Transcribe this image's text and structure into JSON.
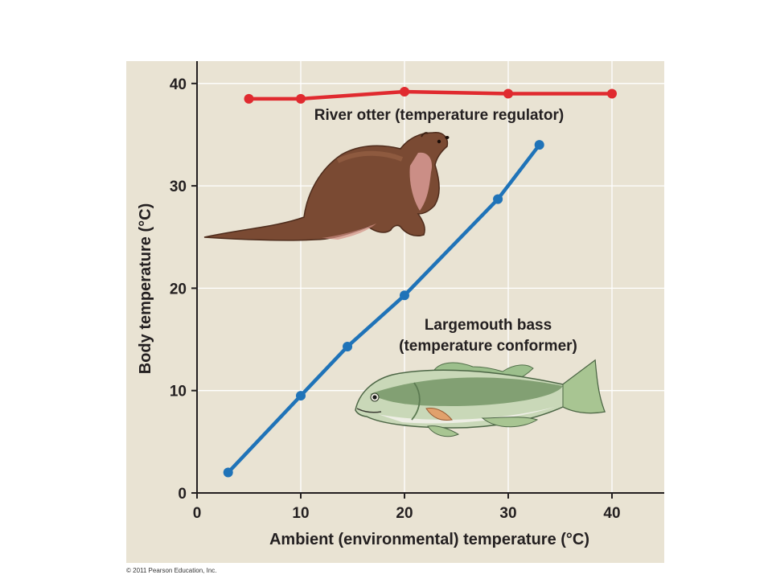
{
  "copyright": "© 2011 Pearson Education, Inc.",
  "colors": {
    "plot_background": "#e9e3d3",
    "gridline": "#ffffff",
    "otter_series": "#e02a2f",
    "bass_series": "#1f73b8",
    "text": "#231f20"
  },
  "chart_data": {
    "type": "line",
    "xlabel": "Ambient (environmental) temperature (°C)",
    "ylabel": "Body temperature (°C)",
    "xlim": [
      0,
      45
    ],
    "ylim": [
      0,
      42
    ],
    "x_ticks": [
      "0",
      "10",
      "20",
      "30",
      "40"
    ],
    "y_ticks": [
      "0",
      "10",
      "20",
      "30",
      "40"
    ],
    "grid": true,
    "series": [
      {
        "name": "River otter (temperature regulator)",
        "x": [
          5,
          10,
          20,
          30,
          40
        ],
        "y": [
          38.5,
          38.5,
          39.2,
          39.0,
          39.0
        ]
      },
      {
        "name": "Largemouth bass (temperature conformer)",
        "name_lines": [
          "Largemouth bass",
          "(temperature conformer)"
        ],
        "x": [
          3,
          10,
          14.5,
          20,
          29,
          33
        ],
        "y": [
          2,
          9.5,
          14.3,
          19.3,
          28.7,
          34
        ]
      }
    ],
    "illustrations": [
      "river-otter",
      "largemouth-bass"
    ]
  }
}
